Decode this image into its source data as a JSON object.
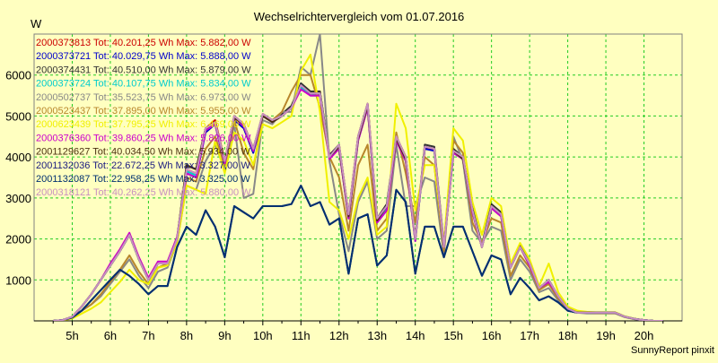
{
  "chart_data": {
    "type": "line",
    "title": "Wechselrichtervergleich vom 01.07.2016",
    "ylabel": "W",
    "xlabel": "",
    "footer": "SunnyReport pinxit",
    "ylim": [
      0,
      7000
    ],
    "xlim": [
      4.0,
      21.0
    ],
    "yticks": [
      1000,
      2000,
      3000,
      4000,
      5000,
      6000
    ],
    "xticks": [
      {
        "v": 5,
        "label": "5h"
      },
      {
        "v": 6,
        "label": "6h"
      },
      {
        "v": 7,
        "label": "7h"
      },
      {
        "v": 8,
        "label": "8h"
      },
      {
        "v": 9,
        "label": "9h"
      },
      {
        "v": 10,
        "label": "10h"
      },
      {
        "v": 11,
        "label": "11h"
      },
      {
        "v": 12,
        "label": "12h"
      },
      {
        "v": 13,
        "label": "13h"
      },
      {
        "v": 14,
        "label": "14h"
      },
      {
        "v": 15,
        "label": "15h"
      },
      {
        "v": 16,
        "label": "16h"
      },
      {
        "v": 17,
        "label": "17h"
      },
      {
        "v": 18,
        "label": "18h"
      },
      {
        "v": 19,
        "label": "19h"
      },
      {
        "v": 20,
        "label": "20h"
      }
    ],
    "grid": true,
    "legend_position": "top-left",
    "x": [
      4.5,
      4.75,
      5.0,
      5.25,
      5.5,
      5.75,
      6.0,
      6.25,
      6.5,
      6.75,
      7.0,
      7.25,
      7.5,
      7.75,
      8.0,
      8.25,
      8.5,
      8.75,
      9.0,
      9.25,
      9.5,
      9.75,
      10.0,
      10.25,
      10.5,
      10.75,
      11.0,
      11.25,
      11.5,
      11.75,
      12.0,
      12.25,
      12.5,
      12.75,
      13.0,
      13.25,
      13.5,
      13.75,
      14.0,
      14.25,
      14.5,
      14.75,
      15.0,
      15.25,
      15.5,
      15.75,
      16.0,
      16.25,
      16.5,
      16.75,
      17.0,
      17.25,
      17.5,
      17.75,
      18.0,
      18.25,
      18.5,
      18.75,
      19.0,
      19.25,
      19.5,
      19.75,
      20.0,
      20.25,
      20.5
    ],
    "series": [
      {
        "name": "2000373813",
        "legend": "2000373813 Tot: 40.201,25 Wh Max: 5.882,00 W",
        "color": "#cc0000",
        "values": [
          0,
          20,
          100,
          350,
          650,
          1000,
          1350,
          1700,
          2100,
          1500,
          1000,
          1400,
          1400,
          2000,
          3700,
          3600,
          4700,
          4900,
          3900,
          5000,
          4800,
          4200,
          5000,
          4900,
          5000,
          5200,
          5700,
          5600,
          5600,
          4000,
          4300,
          2600,
          4500,
          5300,
          2500,
          2800,
          4500,
          4000,
          2000,
          4200,
          4200,
          1800,
          4100,
          4000,
          2700,
          1800,
          2800,
          2600,
          1300,
          1800,
          1400,
          800,
          1000,
          600,
          300,
          200,
          200,
          200,
          200,
          200,
          100,
          50,
          20,
          0,
          0
        ]
      },
      {
        "name": "2000373721",
        "legend": "2000373721 Tot: 40.029,75 Wh Max: 5.888,00 W",
        "color": "#0000cc",
        "values": [
          0,
          20,
          100,
          350,
          650,
          1000,
          1350,
          1700,
          2100,
          1500,
          1000,
          1400,
          1400,
          2000,
          3600,
          3500,
          4600,
          4800,
          3800,
          4900,
          4700,
          4100,
          5000,
          4850,
          5000,
          5200,
          5700,
          5500,
          5500,
          4000,
          4200,
          2500,
          4400,
          5200,
          2400,
          2700,
          4400,
          3900,
          1950,
          4200,
          4150,
          1800,
          4100,
          3950,
          2650,
          1800,
          2750,
          2550,
          1300,
          1800,
          1350,
          800,
          950,
          600,
          300,
          200,
          200,
          200,
          200,
          200,
          100,
          50,
          20,
          0,
          0
        ]
      },
      {
        "name": "2000374431",
        "legend": "2000374431 Tot: 40.510,00 Wh Max: 5.879,00 W",
        "color": "#333333",
        "values": [
          0,
          20,
          100,
          350,
          650,
          1000,
          1350,
          1700,
          2100,
          1500,
          1000,
          1400,
          1400,
          2000,
          3800,
          3700,
          4700,
          4850,
          3900,
          5000,
          4800,
          4200,
          5050,
          4900,
          5050,
          5250,
          5800,
          5600,
          5600,
          4050,
          4300,
          2600,
          4500,
          5300,
          2500,
          2850,
          4500,
          4000,
          2000,
          4300,
          4250,
          1850,
          4200,
          4000,
          2750,
          1850,
          2850,
          2650,
          1350,
          1850,
          1400,
          800,
          1000,
          600,
          300,
          220,
          200,
          200,
          200,
          200,
          100,
          50,
          20,
          0,
          0
        ]
      },
      {
        "name": "2000373724",
        "legend": "2000373724 Tot: 40.107,75 Wh Max: 5.834,00 W",
        "color": "#00cccc",
        "values": [
          0,
          20,
          100,
          350,
          650,
          1000,
          1350,
          1700,
          2100,
          1500,
          1000,
          1400,
          1400,
          2000,
          3650,
          3550,
          4650,
          4800,
          3850,
          4950,
          4750,
          4150,
          5000,
          4850,
          5000,
          5200,
          5700,
          5500,
          5550,
          4000,
          4250,
          2550,
          4450,
          5250,
          2450,
          2750,
          4450,
          3950,
          1950,
          4250,
          4200,
          1800,
          4150,
          3950,
          2700,
          1800,
          2800,
          2600,
          1300,
          1800,
          1400,
          800,
          1000,
          600,
          300,
          200,
          200,
          200,
          200,
          200,
          100,
          50,
          20,
          0,
          0
        ]
      },
      {
        "name": "2000502737",
        "legend": "2000502737 Tot: 35.523,75 Wh Max: 6.973,00 W",
        "color": "#888888",
        "values": [
          0,
          10,
          80,
          250,
          400,
          600,
          900,
          1200,
          1500,
          1100,
          800,
          1200,
          1300,
          1900,
          3300,
          3200,
          3900,
          4300,
          3700,
          4800,
          3000,
          3100,
          4900,
          4800,
          5100,
          5100,
          6200,
          6000,
          7000,
          3900,
          2600,
          1700,
          2900,
          3400,
          2000,
          2200,
          4300,
          2800,
          2800,
          3500,
          3400,
          1600,
          4500,
          3900,
          2200,
          1900,
          2300,
          2200,
          1000,
          1500,
          1200,
          700,
          800,
          500,
          250,
          200,
          180,
          180,
          180,
          180,
          90,
          40,
          10,
          0,
          0
        ]
      },
      {
        "name": "2000523437",
        "legend": "2000523437 Tot: 37.895,00 Wh Max: 5.955,00 W",
        "color": "#b8862b",
        "values": [
          0,
          10,
          80,
          250,
          400,
          650,
          950,
          1250,
          1600,
          1200,
          900,
          1300,
          1400,
          2000,
          3500,
          3400,
          4200,
          4500,
          3800,
          4900,
          4100,
          3700,
          5050,
          4900,
          5100,
          5600,
          6000,
          6000,
          5200,
          4000,
          3500,
          2200,
          3800,
          4300,
          2200,
          2500,
          4600,
          3600,
          2400,
          4000,
          3800,
          1700,
          4400,
          4100,
          2400,
          1900,
          2500,
          2400,
          1100,
          1600,
          1300,
          750,
          900,
          550,
          280,
          200,
          200,
          190,
          190,
          190,
          95,
          45,
          15,
          0,
          0
        ]
      },
      {
        "name": "2000623439",
        "legend": "2000623439 Tot: 37.795,25 Wh Max: 6.469,00 W",
        "color": "#f0f000",
        "values": [
          0,
          10,
          60,
          180,
          300,
          450,
          700,
          950,
          1250,
          1000,
          900,
          1300,
          1350,
          1900,
          3300,
          3200,
          3100,
          4400,
          3600,
          4600,
          4400,
          3800,
          4800,
          4700,
          4850,
          5000,
          6100,
          6500,
          5100,
          2900,
          2700,
          2000,
          3000,
          3500,
          2100,
          2300,
          5300,
          4700,
          2700,
          3800,
          3800,
          1900,
          4700,
          4400,
          2900,
          2100,
          3000,
          2800,
          1400,
          1900,
          1500,
          850,
          1400,
          700,
          350,
          250,
          220,
          210,
          210,
          210,
          110,
          55,
          20,
          0,
          0
        ]
      },
      {
        "name": "2000376360",
        "legend": "2000376360 Tot: 39.860,25 Wh Max: 5.826,00 W",
        "color": "#cc00cc",
        "values": [
          0,
          20,
          100,
          350,
          650,
          1000,
          1400,
          1750,
          2150,
          1550,
          1050,
          1450,
          1450,
          2050,
          3600,
          3500,
          4650,
          4800,
          3850,
          4950,
          4750,
          4150,
          5000,
          4850,
          5000,
          5200,
          5650,
          5500,
          5500,
          3950,
          4200,
          2500,
          4400,
          5200,
          2400,
          2700,
          4400,
          3900,
          1950,
          4250,
          4200,
          1800,
          4100,
          3950,
          2650,
          1800,
          2750,
          2550,
          1300,
          1800,
          1350,
          800,
          950,
          600,
          300,
          200,
          200,
          200,
          200,
          200,
          100,
          50,
          20,
          0,
          0
        ]
      },
      {
        "name": "2001129627",
        "legend": "2001129627 Tot: 40.034,50 Wh Max: 5.934,00 W",
        "color": "#4a3010",
        "values": [
          0,
          20,
          100,
          350,
          650,
          1000,
          1350,
          1700,
          2100,
          1500,
          1000,
          1400,
          1400,
          2000,
          3800,
          3700,
          4700,
          4850,
          3900,
          4950,
          4800,
          4200,
          5000,
          4850,
          5000,
          5200,
          5750,
          5550,
          5550,
          4000,
          4250,
          2550,
          4450,
          5250,
          2450,
          2800,
          4450,
          3950,
          2000,
          4250,
          4200,
          1800,
          4150,
          3950,
          2700,
          1800,
          2800,
          2600,
          1300,
          1800,
          1400,
          800,
          1000,
          600,
          300,
          200,
          200,
          200,
          200,
          200,
          100,
          50,
          20,
          0,
          0
        ]
      },
      {
        "name": "2001132036",
        "legend": "2001132036 Tot: 22.672,25 Wh Max: 3.327,00 W",
        "color": "#1a1a80",
        "values": [
          0,
          20,
          80,
          250,
          500,
          750,
          1000,
          1250,
          1100,
          900,
          650,
          850,
          850,
          1800,
          2300,
          2100,
          2700,
          2300,
          1550,
          2800,
          2650,
          2500,
          2800,
          2800,
          2800,
          2850,
          3300,
          2800,
          2900,
          2350,
          2500,
          1150,
          2500,
          2600,
          1350,
          1600,
          3200,
          2900,
          1150,
          2300,
          2300,
          1550,
          2300,
          2300,
          1700,
          1100,
          1600,
          1500,
          650,
          1050,
          800,
          500,
          600,
          450,
          250,
          200,
          200,
          200,
          200,
          200,
          100,
          50,
          20,
          0,
          0
        ]
      },
      {
        "name": "2001132087",
        "legend": "2001132087 Tot: 22.958,25 Wh Max: 3.325,00 W",
        "color": "#003070",
        "values": [
          0,
          20,
          80,
          250,
          500,
          750,
          1000,
          1250,
          1100,
          900,
          650,
          850,
          850,
          1800,
          2300,
          2100,
          2700,
          2300,
          1550,
          2800,
          2650,
          2500,
          2800,
          2800,
          2800,
          2850,
          3300,
          2800,
          2900,
          2350,
          2500,
          1150,
          2500,
          2600,
          1350,
          1600,
          3200,
          2900,
          1150,
          2300,
          2300,
          1550,
          2300,
          2300,
          1700,
          1100,
          1600,
          1500,
          650,
          1050,
          800,
          500,
          600,
          450,
          250,
          200,
          200,
          200,
          200,
          200,
          100,
          50,
          20,
          0,
          0
        ]
      },
      {
        "name": "2000318121",
        "legend": "2000318121 Tot: 40.262,25 Wh Max: 5.880,00 W",
        "color": "#c890c0",
        "values": [
          0,
          20,
          100,
          350,
          650,
          1000,
          1350,
          1700,
          2100,
          1500,
          1000,
          1400,
          1400,
          2000,
          3700,
          3600,
          4700,
          4850,
          3900,
          5000,
          4800,
          4200,
          5050,
          4900,
          5000,
          5200,
          5750,
          5550,
          5550,
          4000,
          4300,
          2600,
          4500,
          5300,
          2500,
          2800,
          4500,
          4000,
          2000,
          4250,
          4200,
          1800,
          4150,
          4000,
          2700,
          1800,
          2800,
          2600,
          1300,
          1800,
          1400,
          800,
          1000,
          600,
          300,
          200,
          200,
          200,
          200,
          200,
          100,
          50,
          20,
          0,
          0
        ]
      }
    ]
  }
}
